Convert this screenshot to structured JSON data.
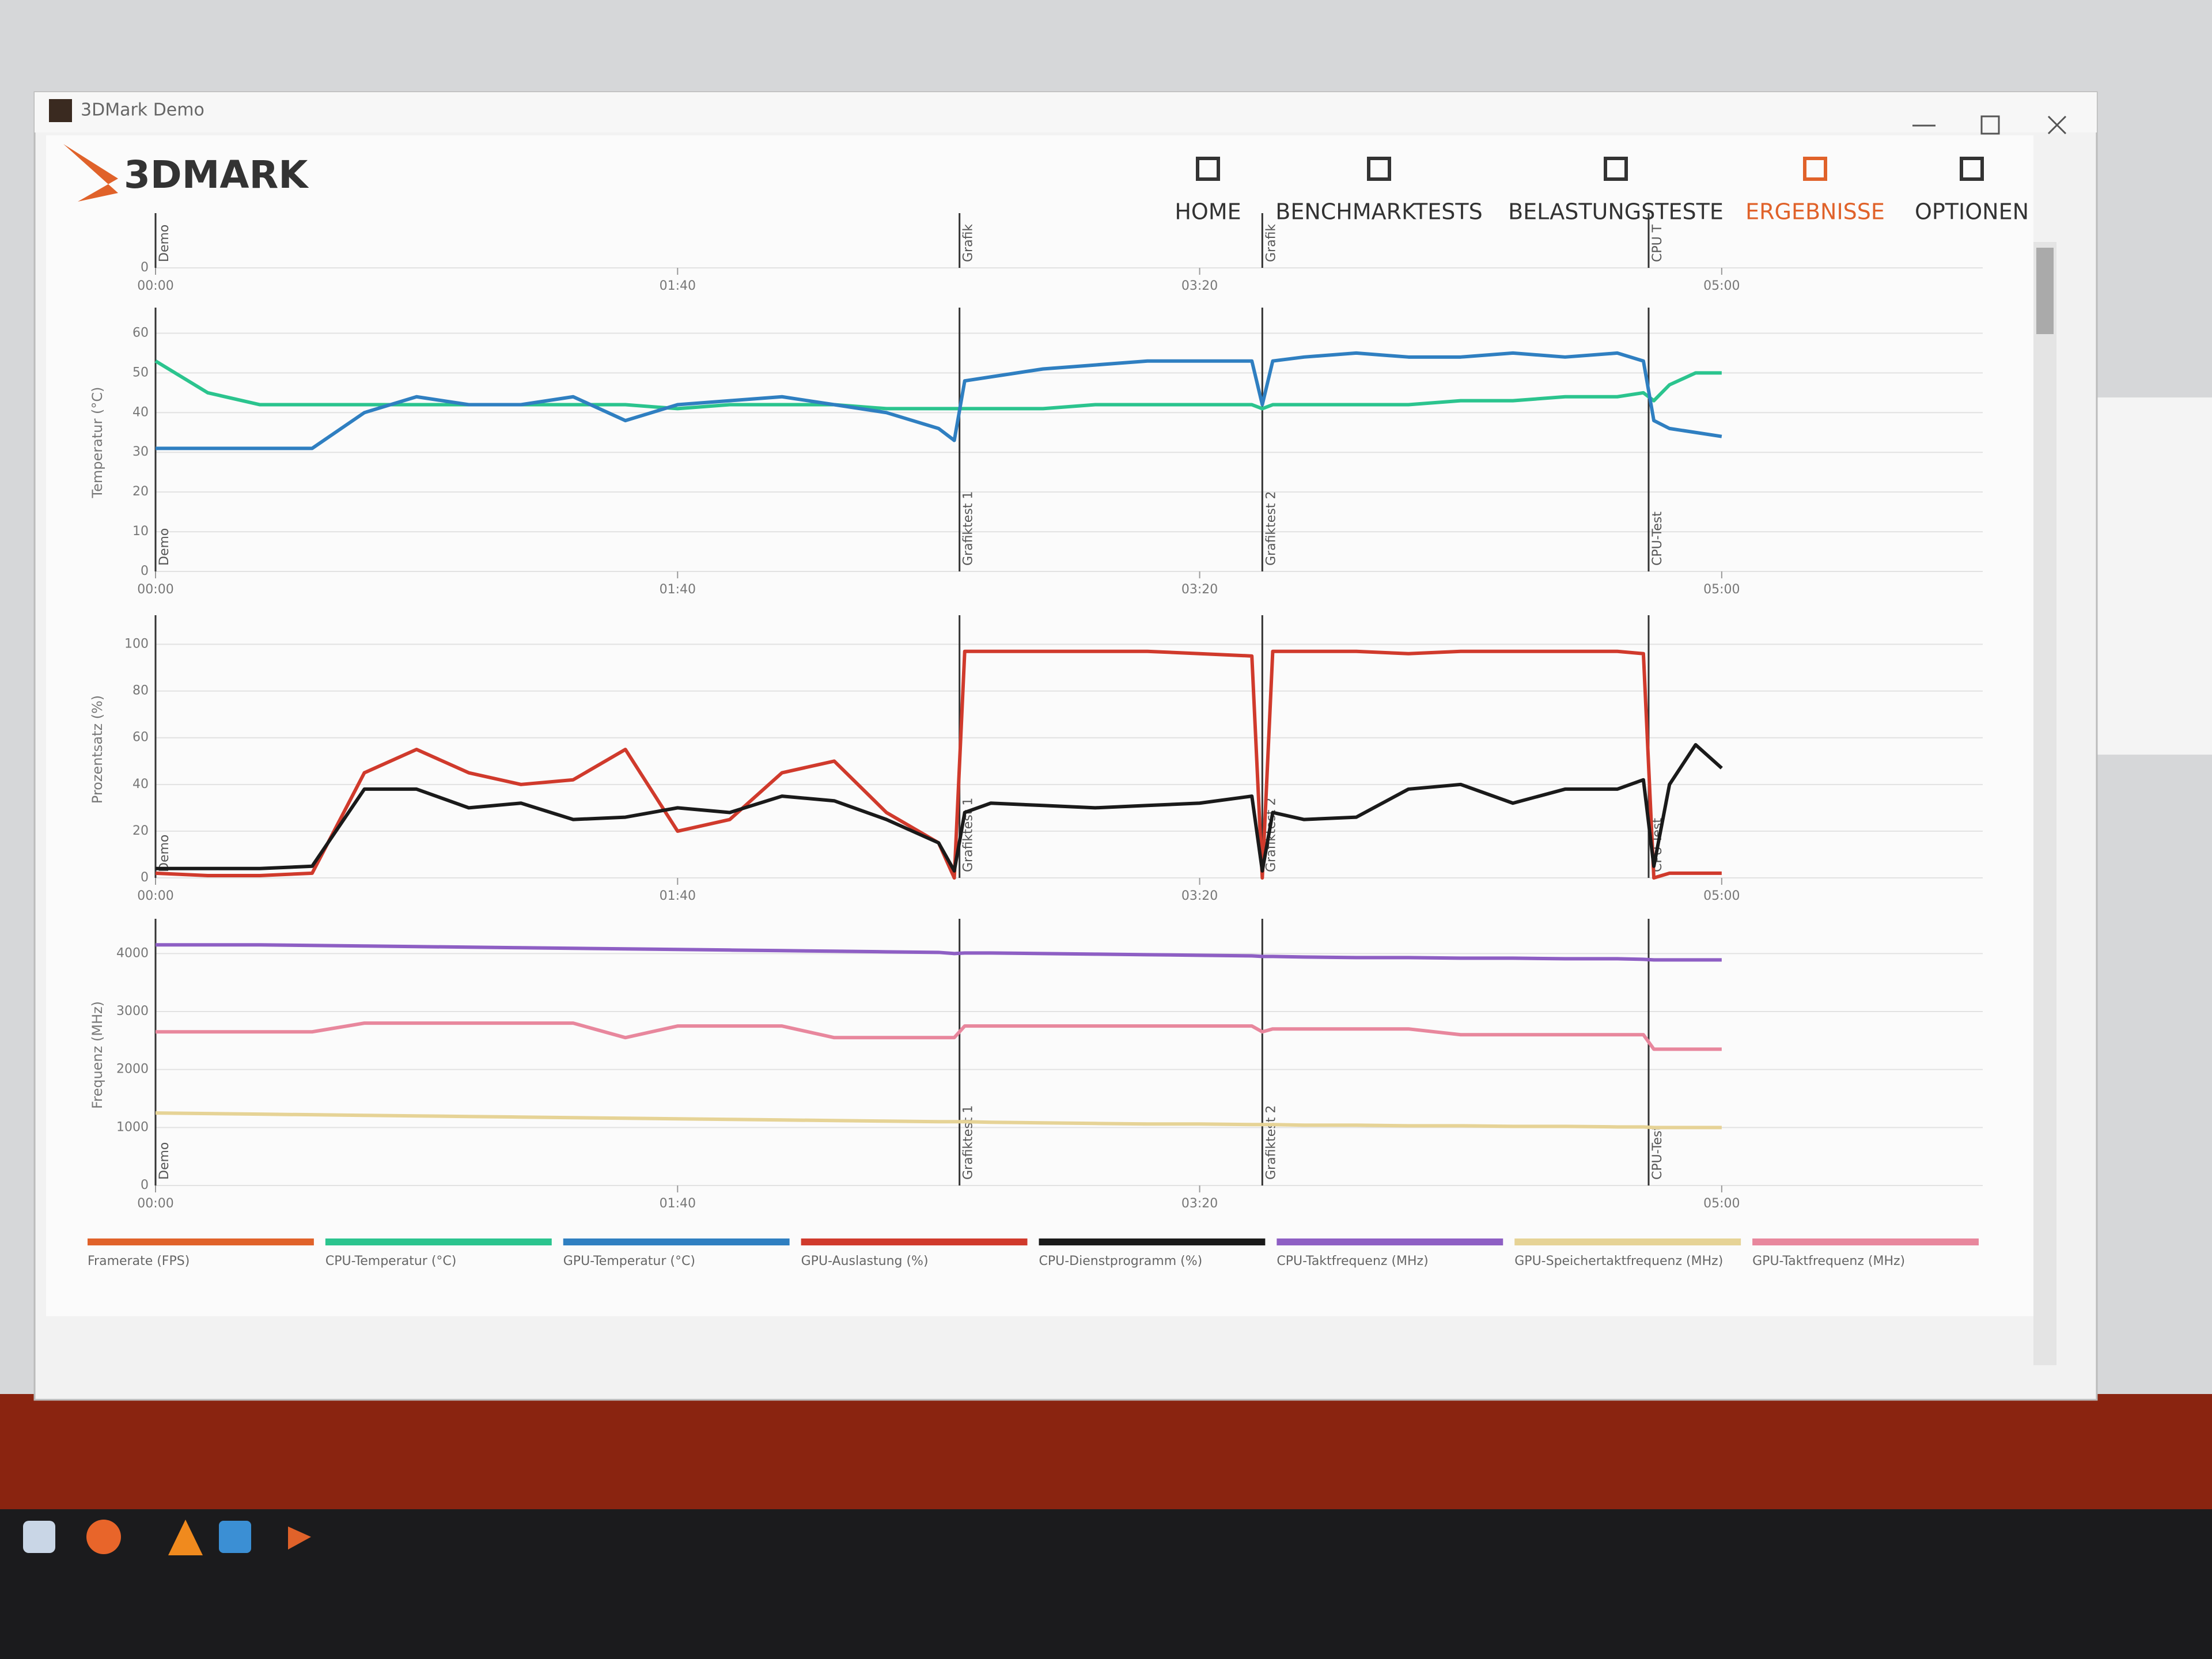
{
  "window": {
    "title": "3DMark Demo",
    "logo": "3DMARK"
  },
  "nav": [
    {
      "label": "HOME"
    },
    {
      "label": "BENCHMARKTESTS"
    },
    {
      "label": "BELASTUNGSTESTE"
    },
    {
      "label": "ERGEBNISSE",
      "active": true
    },
    {
      "label": "OPTIONEN"
    }
  ],
  "chart_data": [
    {
      "type": "line",
      "xlim": [
        0,
        350
      ],
      "ylim": [
        0,
        10
      ],
      "yticks": [
        0
      ],
      "xticks": [
        {
          "value": 0,
          "label": "00:00"
        },
        {
          "value": 100,
          "label": "01:40"
        },
        {
          "value": 200,
          "label": "03:20"
        },
        {
          "value": 300,
          "label": "05:00"
        }
      ],
      "markers": [
        {
          "x": 0,
          "label": "Demo"
        },
        {
          "x": 154,
          "label": "Grafik"
        },
        {
          "x": 212,
          "label": "Grafik"
        },
        {
          "x": 286,
          "label": "CPU T"
        }
      ],
      "x": [],
      "series": []
    },
    {
      "type": "line",
      "y_label": "Temperatur (°C)",
      "xlim": [
        0,
        350
      ],
      "ylim": [
        0,
        65
      ],
      "yticks": [
        0,
        10,
        20,
        30,
        40,
        50,
        60
      ],
      "xticks": [
        {
          "value": 0,
          "label": "00:00"
        },
        {
          "value": 100,
          "label": "01:40"
        },
        {
          "value": 200,
          "label": "03:20"
        },
        {
          "value": 300,
          "label": "05:00"
        }
      ],
      "markers": [
        {
          "x": 0,
          "label": "Demo"
        },
        {
          "x": 154,
          "label": "Grafiktest 1"
        },
        {
          "x": 212,
          "label": "Grafiktest 2"
        },
        {
          "x": 286,
          "label": "CPU-Test"
        }
      ],
      "x": [
        0,
        10,
        20,
        30,
        40,
        50,
        60,
        70,
        80,
        90,
        100,
        110,
        120,
        130,
        140,
        150,
        153,
        155,
        160,
        170,
        180,
        190,
        200,
        210,
        212,
        214,
        220,
        230,
        240,
        250,
        260,
        270,
        280,
        285,
        287,
        290,
        295,
        300
      ],
      "series": [
        {
          "color": "#2bc48e",
          "values": [
            53,
            45,
            42,
            42,
            42,
            42,
            42,
            42,
            42,
            42,
            41,
            42,
            42,
            42,
            41,
            41,
            41,
            41,
            41,
            41,
            42,
            42,
            42,
            42,
            41,
            42,
            42,
            42,
            42,
            43,
            43,
            44,
            44,
            45,
            43,
            47,
            50,
            50
          ]
        },
        {
          "color": "#2f7fc1",
          "values": [
            31,
            31,
            31,
            31,
            40,
            44,
            42,
            42,
            44,
            38,
            42,
            43,
            44,
            42,
            40,
            36,
            33,
            48,
            49,
            51,
            52,
            53,
            53,
            53,
            42,
            53,
            54,
            55,
            54,
            54,
            55,
            54,
            55,
            53,
            38,
            36,
            35,
            34
          ]
        }
      ]
    },
    {
      "type": "line",
      "y_label": "Prozentsatz (%)",
      "xlim": [
        0,
        350
      ],
      "ylim": [
        0,
        110
      ],
      "yticks": [
        0,
        20,
        40,
        60,
        80,
        100
      ],
      "xticks": [
        {
          "value": 0,
          "label": "00:00"
        },
        {
          "value": 100,
          "label": "01:40"
        },
        {
          "value": 200,
          "label": "03:20"
        },
        {
          "value": 300,
          "label": "05:00"
        }
      ],
      "markers": [
        {
          "x": 0,
          "label": "Demo"
        },
        {
          "x": 154,
          "label": "Grafiktest 1"
        },
        {
          "x": 212,
          "label": "Grafiktest 2"
        },
        {
          "x": 286,
          "label": "CPU-Test"
        }
      ],
      "x": [
        0,
        10,
        20,
        30,
        40,
        50,
        60,
        70,
        80,
        90,
        100,
        110,
        120,
        130,
        140,
        150,
        153,
        155,
        160,
        170,
        180,
        190,
        200,
        210,
        212,
        214,
        220,
        230,
        240,
        250,
        260,
        270,
        280,
        285,
        287,
        290,
        295,
        300
      ],
      "series": [
        {
          "color": "#d03a2c",
          "values": [
            2,
            1,
            1,
            2,
            45,
            55,
            45,
            40,
            42,
            55,
            20,
            25,
            45,
            50,
            28,
            15,
            0,
            97,
            97,
            97,
            97,
            97,
            96,
            95,
            0,
            97,
            97,
            97,
            96,
            97,
            97,
            97,
            97,
            96,
            0,
            2,
            2,
            2
          ]
        },
        {
          "color": "#1a1a1a",
          "values": [
            4,
            4,
            4,
            5,
            38,
            38,
            30,
            32,
            25,
            26,
            30,
            28,
            35,
            33,
            25,
            15,
            3,
            28,
            32,
            31,
            30,
            31,
            32,
            35,
            3,
            28,
            25,
            26,
            38,
            40,
            32,
            38,
            38,
            42,
            5,
            40,
            57,
            47
          ]
        }
      ]
    },
    {
      "type": "line",
      "y_label": "Frequenz (MHz)",
      "xlim": [
        0,
        350
      ],
      "ylim": [
        0,
        4500
      ],
      "yticks": [
        0,
        1000,
        2000,
        3000,
        4000
      ],
      "xticks": [
        {
          "value": 0,
          "label": "00:00"
        },
        {
          "value": 100,
          "label": "01:40"
        },
        {
          "value": 200,
          "label": "03:20"
        },
        {
          "value": 300,
          "label": "05:00"
        }
      ],
      "markers": [
        {
          "x": 0,
          "label": "Demo"
        },
        {
          "x": 154,
          "label": "Grafiktest 1"
        },
        {
          "x": 212,
          "label": "Grafiktest 2"
        },
        {
          "x": 286,
          "label": "CPU-Test"
        }
      ],
      "x": [
        0,
        10,
        20,
        30,
        40,
        50,
        60,
        70,
        80,
        90,
        100,
        110,
        120,
        130,
        140,
        150,
        153,
        155,
        160,
        170,
        180,
        190,
        200,
        210,
        212,
        214,
        220,
        230,
        240,
        250,
        260,
        270,
        280,
        285,
        287,
        290,
        295,
        300
      ],
      "series": [
        {
          "color": "#8e5fc4",
          "values": [
            4150,
            4150,
            4150,
            4140,
            4130,
            4120,
            4110,
            4100,
            4090,
            4080,
            4070,
            4060,
            4050,
            4040,
            4030,
            4020,
            4000,
            4010,
            4010,
            4000,
            3990,
            3980,
            3970,
            3960,
            3950,
            3950,
            3940,
            3930,
            3930,
            3920,
            3920,
            3910,
            3910,
            3900,
            3890,
            3890,
            3890,
            3890
          ]
        },
        {
          "color": "#e8879d",
          "values": [
            2650,
            2650,
            2650,
            2650,
            2800,
            2800,
            2800,
            2800,
            2800,
            2550,
            2750,
            2750,
            2750,
            2550,
            2550,
            2550,
            2550,
            2750,
            2750,
            2750,
            2750,
            2750,
            2750,
            2750,
            2650,
            2700,
            2700,
            2700,
            2700,
            2600,
            2600,
            2600,
            2600,
            2600,
            2350,
            2350,
            2350,
            2350
          ]
        },
        {
          "color": "#e6d396",
          "values": [
            1250,
            1240,
            1230,
            1220,
            1210,
            1200,
            1190,
            1180,
            1170,
            1160,
            1150,
            1140,
            1130,
            1120,
            1110,
            1100,
            1100,
            1100,
            1090,
            1080,
            1070,
            1060,
            1060,
            1050,
            1050,
            1050,
            1040,
            1040,
            1030,
            1030,
            1020,
            1020,
            1010,
            1010,
            1000,
            1000,
            1000,
            1000
          ]
        }
      ]
    }
  ],
  "legend": [
    {
      "name": "Framerate (FPS)",
      "color": "#e0622a"
    },
    {
      "name": "CPU-Temperatur (°C)",
      "color": "#2bc48e"
    },
    {
      "name": "GPU-Temperatur (°C)",
      "color": "#2f7fc1"
    },
    {
      "name": "GPU-Auslastung (%)",
      "color": "#d03a2c"
    },
    {
      "name": "CPU-Dienstprogramm (%)",
      "color": "#1a1a1a"
    },
    {
      "name": "CPU-Taktfrequenz (MHz)",
      "color": "#8e5fc4"
    },
    {
      "name": "GPU-Speichertaktfrequenz (MHz)",
      "color": "#e6d396"
    },
    {
      "name": "GPU-Taktfrequenz (MHz)",
      "color": "#e8879d"
    }
  ]
}
